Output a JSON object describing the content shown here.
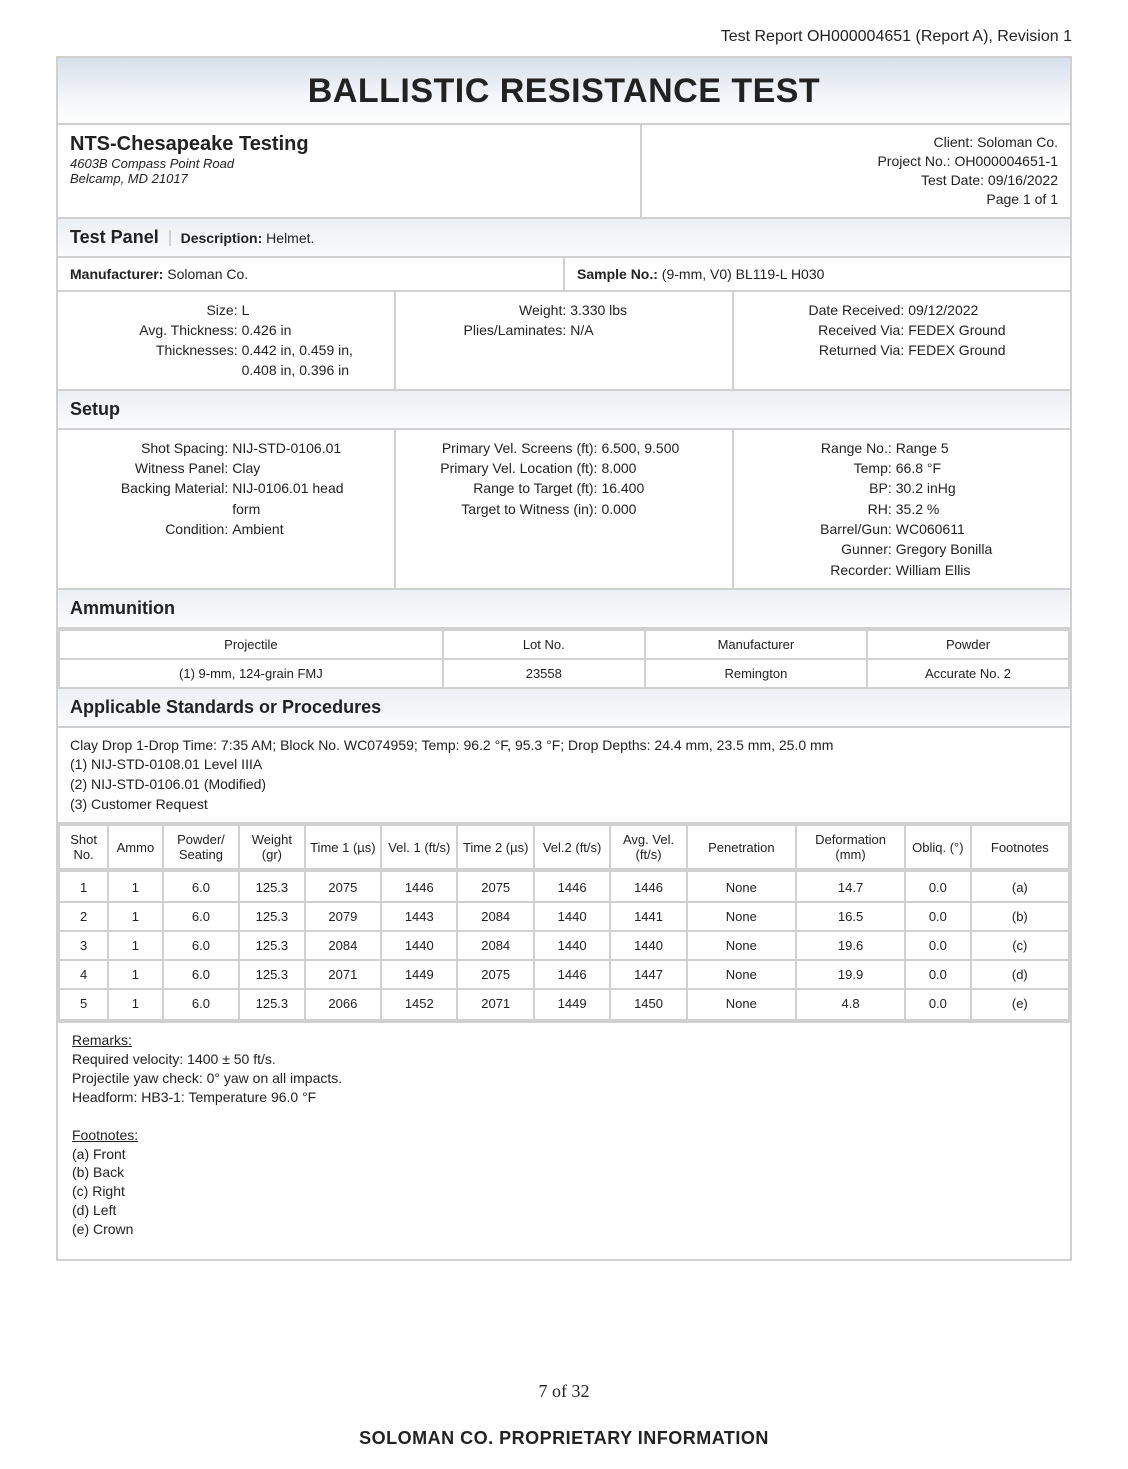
{
  "header": {
    "report_id": "Test Report OH000004651 (Report A), Revision 1"
  },
  "title": "BALLISTIC RESISTANCE TEST",
  "lab": {
    "name": "NTS-Chesapeake Testing",
    "addr1": "4603B Compass Point Road",
    "addr2": "Belcamp, MD 21017"
  },
  "client_block": {
    "client_lbl": "Client:",
    "client": "Soloman Co.",
    "project_lbl": "Project No.:",
    "project": "OH000004651-1",
    "date_lbl": "Test Date:",
    "date": "09/16/2022",
    "page": "Page 1 of 1"
  },
  "panel": {
    "section": "Test Panel",
    "desc_lbl": "Description:",
    "desc": "Helmet.",
    "mfr_lbl": "Manufacturer:",
    "mfr": "Soloman Co.",
    "sample_lbl": "Sample No.:",
    "sample": "(9-mm, V0) BL119-L H030",
    "size_lbl": "Size:",
    "size": "L",
    "avgthk_lbl": "Avg. Thickness:",
    "avgthk": "0.426 in",
    "thk_lbl": "Thicknesses:",
    "thk1": "0.442 in, 0.459 in,",
    "thk2": "0.408 in, 0.396 in",
    "weight_lbl": "Weight:",
    "weight": "3.330 lbs",
    "plies_lbl": "Plies/Laminates:",
    "plies": "N/A",
    "recv_lbl": "Date Received:",
    "recv": "09/12/2022",
    "recvvia_lbl": "Received Via:",
    "recvvia": "FEDEX Ground",
    "retvia_lbl": "Returned Via:",
    "retvia": "FEDEX Ground"
  },
  "setup": {
    "section": "Setup",
    "c1": {
      "shot_lbl": "Shot Spacing:",
      "shot": "NIJ-STD-0106.01",
      "wit_lbl": "Witness Panel:",
      "wit": "Clay",
      "back_lbl": "Backing Material:",
      "back": "NIJ-0106.01 head",
      "back2": "form",
      "cond_lbl": "Condition:",
      "cond": "Ambient"
    },
    "c2": {
      "pvs_lbl": "Primary Vel. Screens (ft):",
      "pvs": "6.500, 9.500",
      "pvl_lbl": "Primary Vel. Location (ft):",
      "pvl": "8.000",
      "rtt_lbl": "Range to Target (ft):",
      "rtt": "16.400",
      "ttw_lbl": "Target to Witness (in):",
      "ttw": "0.000"
    },
    "c3": {
      "range_lbl": "Range No.:",
      "range": "Range 5",
      "temp_lbl": "Temp:",
      "temp": "66.8 °F",
      "bp_lbl": "BP:",
      "bp": "30.2 inHg",
      "rh_lbl": "RH:",
      "rh": "35.2 %",
      "gun_lbl": "Barrel/Gun:",
      "gun": "WC060611",
      "gunner_lbl": "Gunner:",
      "gunner": "Gregory Bonilla",
      "rec_lbl": "Recorder:",
      "rec": "William Ellis"
    }
  },
  "ammo": {
    "section": "Ammunition",
    "hdr": {
      "proj": "Projectile",
      "lot": "Lot No.",
      "mfr": "Manufacturer",
      "pow": "Powder"
    },
    "row": {
      "proj": "(1) 9-mm, 124-grain FMJ",
      "lot": "23558",
      "mfr": "Remington",
      "pow": "Accurate No. 2"
    }
  },
  "std": {
    "section": "Applicable Standards or Procedures",
    "clay": "Clay Drop 1-Drop Time: 7:35 AM; Block No. WC074959; Temp: 96.2 °F, 95.3 °F; Drop Depths: 24.4 mm, 23.5 mm, 25.0 mm",
    "l1": "(1) NIJ-STD-0108.01 Level IIIA",
    "l2": "(2) NIJ-STD-0106.01 (Modified)",
    "l3": "(3) Customer Request"
  },
  "shots": {
    "hdr": [
      "Shot No.",
      "Ammo",
      "Powder/ Seating",
      "Weight (gr)",
      "Time 1 (µs)",
      "Vel. 1 (ft/s)",
      "Time 2 (µs)",
      "Vel.2 (ft/s)",
      "Avg. Vel. (ft/s)",
      "Penetration",
      "Deformation (mm)",
      "Obliq. (°)",
      "Footnotes"
    ],
    "rows": [
      [
        "1",
        "1",
        "6.0",
        "125.3",
        "2075",
        "1446",
        "2075",
        "1446",
        "1446",
        "None",
        "14.7",
        "0.0",
        "(a)"
      ],
      [
        "2",
        "1",
        "6.0",
        "125.3",
        "2079",
        "1443",
        "2084",
        "1440",
        "1441",
        "None",
        "16.5",
        "0.0",
        "(b)"
      ],
      [
        "3",
        "1",
        "6.0",
        "125.3",
        "2084",
        "1440",
        "2084",
        "1440",
        "1440",
        "None",
        "19.6",
        "0.0",
        "(c)"
      ],
      [
        "4",
        "1",
        "6.0",
        "125.3",
        "2071",
        "1449",
        "2075",
        "1446",
        "1447",
        "None",
        "19.9",
        "0.0",
        "(d)"
      ],
      [
        "5",
        "1",
        "6.0",
        "125.3",
        "2066",
        "1452",
        "2071",
        "1449",
        "1450",
        "None",
        "4.8",
        "0.0",
        "(e)"
      ]
    ],
    "col_pct": [
      4.5,
      5,
      7,
      6,
      7,
      7,
      7,
      7,
      7,
      10,
      10,
      6,
      9
    ]
  },
  "notes": {
    "remarks_h": "Remarks:",
    "r1": "Required velocity: 1400 ± 50 ft/s.",
    "r2": "Projectile yaw check: 0° yaw on all impacts.",
    "r3": "Headform: HB3-1: Temperature 96.0 °F",
    "foot_h": "Footnotes:",
    "f": [
      "(a) Front",
      "(b) Back",
      "(c) Right",
      "(d) Left",
      "(e) Crown"
    ]
  },
  "footer": {
    "pg": "7 of 32",
    "prop": "SOLOMAN CO. PROPRIETARY INFORMATION"
  },
  "colors": {
    "border": "#d0d0d0",
    "grad_top": "#d6dfeb",
    "text": "#222"
  }
}
